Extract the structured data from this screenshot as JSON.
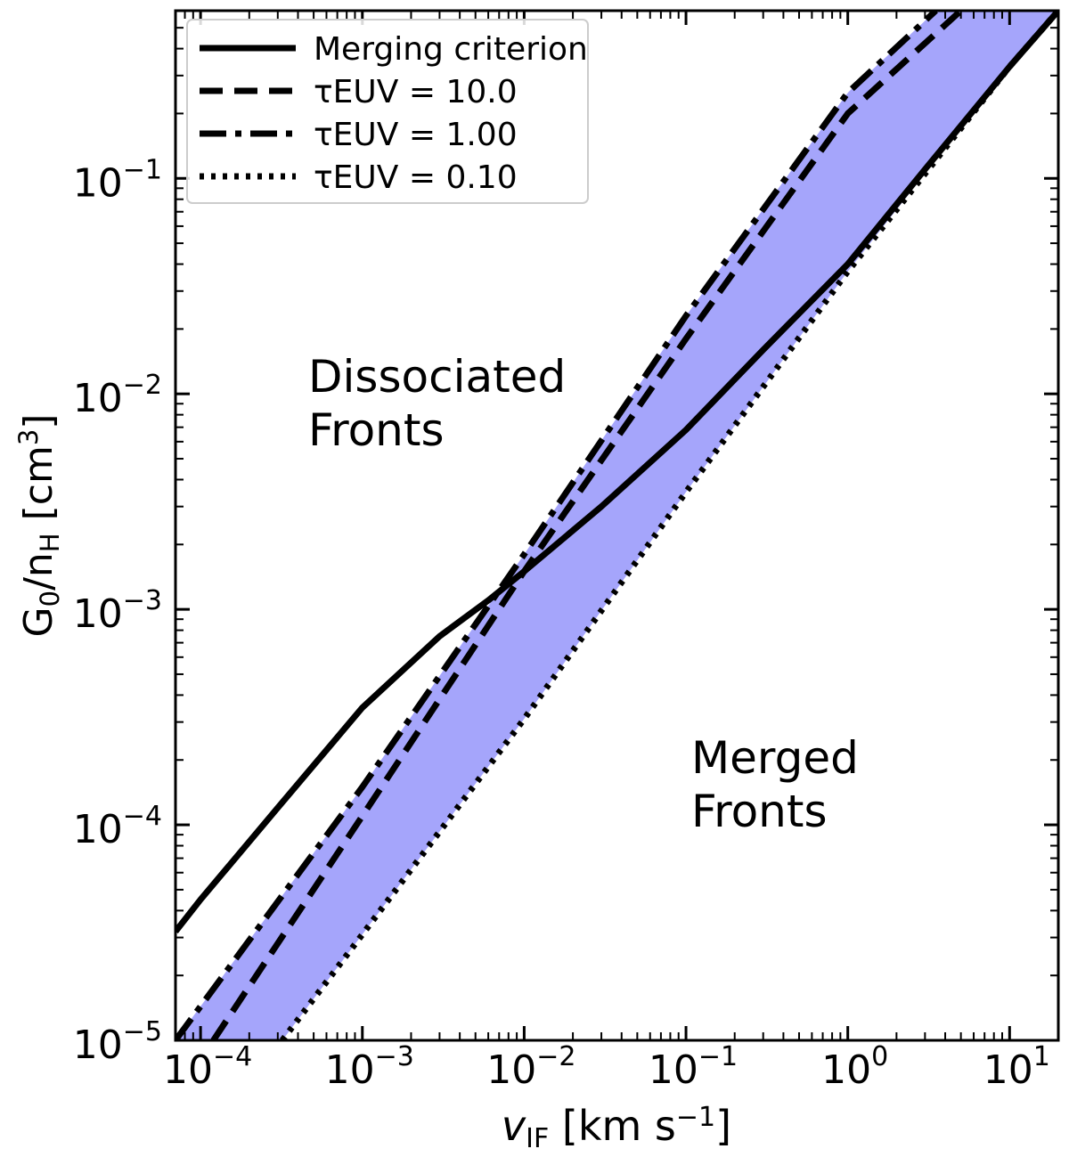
{
  "chart_data": {
    "type": "line",
    "xlabel": "v_IF [km s^-1]",
    "ylabel": "G0/nH [cm^3]",
    "x_scale": "log",
    "y_scale": "log",
    "xlim": [
      7e-05,
      20
    ],
    "ylim": [
      1e-05,
      0.6
    ],
    "x_ticks": [
      {
        "value": 0.0001,
        "label": "10^-4"
      },
      {
        "value": 0.001,
        "label": "10^-3"
      },
      {
        "value": 0.01,
        "label": "10^-2"
      },
      {
        "value": 0.1,
        "label": "10^-1"
      },
      {
        "value": 1,
        "label": "10^0"
      },
      {
        "value": 10,
        "label": "10^1"
      }
    ],
    "y_ticks": [
      {
        "value": 1e-05,
        "label": "10^-5"
      },
      {
        "value": 0.0001,
        "label": "10^-4"
      },
      {
        "value": 0.001,
        "label": "10^-3"
      },
      {
        "value": 0.01,
        "label": "10^-2"
      },
      {
        "value": 0.1,
        "label": "10^-1"
      }
    ],
    "grid": false,
    "legend_position": "top-left",
    "fill_color": "#a5a5fb",
    "series": [
      {
        "name": "Merging criterion",
        "style": "solid",
        "x": [
          7e-05,
          0.0001,
          0.0003,
          0.001,
          0.003,
          0.006,
          0.01,
          0.03,
          0.1,
          0.3,
          1,
          3,
          10,
          20
        ],
        "y": [
          3.2e-05,
          4.5e-05,
          0.00012,
          0.00035,
          0.00075,
          0.0011,
          0.0015,
          0.003,
          0.0068,
          0.016,
          0.04,
          0.11,
          0.33,
          0.6
        ]
      },
      {
        "name": "τEUV = 10.0",
        "style": "dashed",
        "x": [
          0.00012,
          0.001,
          0.01,
          0.1,
          1,
          5
        ],
        "y": [
          1e-05,
          0.00011,
          0.0015,
          0.018,
          0.2,
          0.6
        ]
      },
      {
        "name": "τEUV = 1.00",
        "style": "dashdot",
        "x": [
          7e-05,
          0.001,
          0.01,
          0.1,
          1,
          3.5
        ],
        "y": [
          1e-05,
          0.00015,
          0.0018,
          0.023,
          0.25,
          0.6
        ]
      },
      {
        "name": "τEUV = 0.10",
        "style": "dotted",
        "x": [
          0.00032,
          0.001,
          0.01,
          0.1,
          1,
          10,
          20
        ],
        "y": [
          1e-05,
          3.1e-05,
          0.00031,
          0.0035,
          0.037,
          0.33,
          0.6
        ]
      }
    ],
    "annotations": [
      {
        "lines": [
          "Dissociated",
          "Fronts"
        ]
      },
      {
        "lines": [
          "Merged",
          "Fronts"
        ]
      }
    ]
  }
}
